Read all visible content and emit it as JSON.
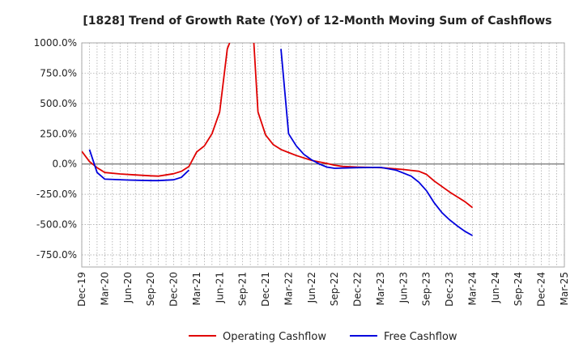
{
  "chart_data": {
    "type": "line",
    "title": "[1828]  Trend of Growth Rate (YoY) of 12-Month Moving Sum of Cashflows",
    "xlabel": "",
    "ylabel": "",
    "ylim": [
      -850,
      1000
    ],
    "grid": true,
    "legend_position": "bottom",
    "y_ticks": [
      1000,
      750,
      500,
      250,
      0,
      -250,
      -500,
      -750
    ],
    "y_tick_labels": [
      "1000.0%",
      "750.0%",
      "500.0%",
      "250.0%",
      "0.0%",
      "-250.0%",
      "-500.0%",
      "-750.0%"
    ],
    "x_tick_labels": [
      "Dec-19",
      "Mar-20",
      "Jun-20",
      "Sep-20",
      "Dec-20",
      "Mar-21",
      "Jun-21",
      "Sep-21",
      "Dec-21",
      "Mar-22",
      "Jun-22",
      "Sep-22",
      "Dec-22",
      "Mar-23",
      "Jun-23",
      "Sep-23",
      "Dec-23",
      "Mar-24",
      "Jun-24",
      "Sep-24",
      "Dec-24",
      "Mar-25"
    ],
    "series": [
      {
        "name": "Operating Cashflow",
        "color": "#e00000",
        "segments": [
          [
            [
              "2019-12",
              105
            ],
            [
              "2020-01",
              20
            ],
            [
              "2020-02",
              -30
            ],
            [
              "2020-03",
              -70
            ],
            [
              "2020-05",
              -82
            ],
            [
              "2020-07",
              -90
            ],
            [
              "2020-09",
              -97
            ],
            [
              "2020-10",
              -100
            ],
            [
              "2020-11",
              -90
            ],
            [
              "2020-12",
              -80
            ],
            [
              "2021-01",
              -60
            ],
            [
              "2021-02",
              -20
            ],
            [
              "2021-03",
              100
            ],
            [
              "2021-04",
              150
            ],
            [
              "2021-05",
              250
            ],
            [
              "2021-06",
              430
            ],
            [
              "2021-07",
              950
            ],
            [
              "2021-07-10",
              1000
            ]
          ],
          [
            [
              "2021-10-15",
              1000
            ],
            [
              "2021-11",
              430
            ],
            [
              "2021-12",
              240
            ],
            [
              "2022-01",
              160
            ],
            [
              "2022-02",
              120
            ],
            [
              "2022-03",
              95
            ],
            [
              "2022-04",
              70
            ],
            [
              "2022-05",
              50
            ],
            [
              "2022-06",
              30
            ],
            [
              "2022-08",
              5
            ],
            [
              "2022-09",
              -10
            ],
            [
              "2022-10",
              -20
            ],
            [
              "2022-12",
              -25
            ],
            [
              "2023-03",
              -30
            ],
            [
              "2023-06",
              -45
            ],
            [
              "2023-08",
              -60
            ],
            [
              "2023-09",
              -85
            ],
            [
              "2023-10",
              -140
            ],
            [
              "2023-12",
              -230
            ],
            [
              "2024-02",
              -310
            ],
            [
              "2024-03",
              -360
            ]
          ]
        ]
      },
      {
        "name": "Free Cashflow",
        "color": "#0000dd",
        "segments": [
          [
            [
              "2020-01",
              120
            ],
            [
              "2020-02",
              -70
            ],
            [
              "2020-03",
              -125
            ],
            [
              "2020-06",
              -132
            ],
            [
              "2020-09",
              -137
            ],
            [
              "2020-10",
              -137
            ],
            [
              "2020-12",
              -130
            ],
            [
              "2021-01",
              -110
            ],
            [
              "2021-02",
              -50
            ]
          ],
          [
            [
              "2022-02",
              950
            ],
            [
              "2022-03",
              250
            ],
            [
              "2022-04",
              150
            ],
            [
              "2022-05",
              80
            ],
            [
              "2022-06",
              35
            ],
            [
              "2022-07",
              0
            ],
            [
              "2022-08",
              -25
            ],
            [
              "2022-09",
              -35
            ],
            [
              "2022-12",
              -30
            ],
            [
              "2023-03",
              -28
            ],
            [
              "2023-05",
              -50
            ],
            [
              "2023-07",
              -100
            ],
            [
              "2023-08",
              -150
            ],
            [
              "2023-09",
              -220
            ],
            [
              "2023-10",
              -320
            ],
            [
              "2023-11",
              -400
            ],
            [
              "2023-12",
              -460
            ],
            [
              "2024-01",
              -510
            ],
            [
              "2024-02",
              -555
            ],
            [
              "2024-03",
              -590
            ]
          ]
        ]
      }
    ]
  }
}
